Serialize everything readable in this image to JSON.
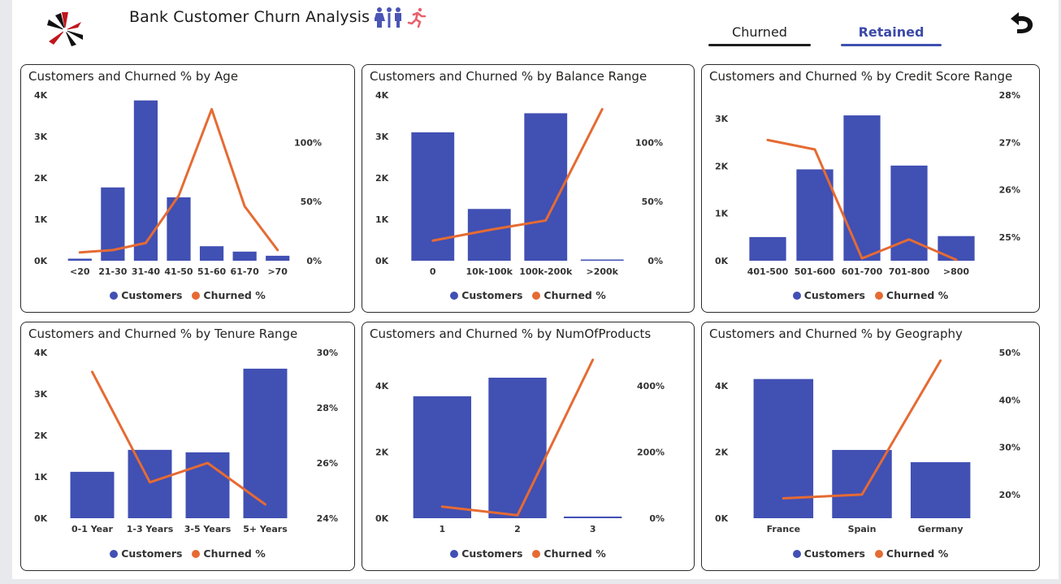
{
  "header": {
    "title": "Bank Customer Churn Analysis",
    "tabs": [
      {
        "label": "Churned",
        "active": false
      },
      {
        "label": "Retained",
        "active": true
      }
    ]
  },
  "legend": {
    "customers": "Customers",
    "churned": "Churned %"
  },
  "colors": {
    "bar": "#4150b3",
    "line": "#e56b33",
    "accent": "#3f4fb0"
  },
  "icons": [
    "logo-hands-icon",
    "people-icon",
    "running-person-icon",
    "back-arrow-icon"
  ],
  "chart_data": [
    {
      "type": "bar",
      "title": "Customers and Churned % by Age",
      "categories": [
        "<20",
        "21-30",
        "31-40",
        "41-50",
        "51-60",
        "61-70",
        ">70"
      ],
      "series": [
        {
          "name": "Customers",
          "type": "bar",
          "values": [
            50,
            1770,
            3870,
            1530,
            350,
            220,
            120
          ]
        },
        {
          "name": "Churned %",
          "type": "line",
          "values": [
            7,
            9,
            15,
            55,
            128,
            46,
            9
          ]
        }
      ],
      "y_left": {
        "ticks": [
          "0K",
          "1K",
          "2K",
          "3K",
          "4K"
        ],
        "range": [
          0,
          4000
        ]
      },
      "y_right": {
        "ticks": [
          "0%",
          "50%",
          "100%"
        ],
        "range": [
          0,
          140
        ]
      }
    },
    {
      "type": "bar",
      "title": "Customers and Churned % by Balance Range",
      "categories": [
        "0",
        "10k-100k",
        "100k-200k",
        ">200k"
      ],
      "series": [
        {
          "name": "Customers",
          "type": "bar",
          "values": [
            3100,
            1250,
            3560,
            10
          ]
        },
        {
          "name": "Churned %",
          "type": "line",
          "values": [
            17,
            26,
            34,
            128
          ]
        }
      ],
      "y_left": {
        "ticks": [
          "0K",
          "1K",
          "2K",
          "3K",
          "4K"
        ],
        "range": [
          0,
          4000
        ]
      },
      "y_right": {
        "ticks": [
          "0%",
          "50%",
          "100%"
        ],
        "range": [
          0,
          140
        ]
      }
    },
    {
      "type": "bar",
      "title": "Customers and Churned % by Credit Score Range",
      "categories": [
        "401-500",
        "501-600",
        "601-700",
        "701-800",
        ">800"
      ],
      "series": [
        {
          "name": "Customers",
          "type": "bar",
          "values": [
            500,
            1930,
            3070,
            2010,
            520
          ]
        },
        {
          "name": "Churned %",
          "type": "line",
          "values": [
            27.05,
            26.85,
            24.55,
            24.95,
            24.52
          ]
        }
      ],
      "y_left": {
        "ticks": [
          "0K",
          "1K",
          "2K",
          "3K"
        ],
        "range": [
          0,
          3500
        ]
      },
      "y_right": {
        "ticks": [
          "25%",
          "26%",
          "27%",
          "28%"
        ],
        "range": [
          24.5,
          28
        ]
      }
    },
    {
      "type": "bar",
      "title": "Customers and Churned % by Tenure Range",
      "categories": [
        "0-1 Year",
        "1-3 Years",
        "3-5 Years",
        "5+ Years"
      ],
      "series": [
        {
          "name": "Customers",
          "type": "bar",
          "values": [
            1120,
            1650,
            1590,
            3610
          ]
        },
        {
          "name": "Churned %",
          "type": "line",
          "values": [
            29.3,
            25.3,
            26.0,
            24.5
          ]
        }
      ],
      "y_left": {
        "ticks": [
          "0K",
          "1K",
          "2K",
          "3K",
          "4K"
        ],
        "range": [
          0,
          4000
        ]
      },
      "y_right": {
        "ticks": [
          "24%",
          "26%",
          "28%",
          "30%"
        ],
        "range": [
          24,
          30
        ]
      }
    },
    {
      "type": "bar",
      "title": "Customers and Churned % by NumOfProducts",
      "categories": [
        "1",
        "2",
        "3"
      ],
      "series": [
        {
          "name": "Customers",
          "type": "bar",
          "values": [
            3680,
            4240,
            50
          ]
        },
        {
          "name": "Churned %",
          "type": "line",
          "values": [
            35,
            9,
            478
          ]
        }
      ],
      "y_left": {
        "ticks": [
          "0K",
          "2K",
          "4K"
        ],
        "range": [
          0,
          5000
        ]
      },
      "y_right": {
        "ticks": [
          "0%",
          "200%",
          "400%"
        ],
        "range": [
          0,
          500
        ]
      }
    },
    {
      "type": "bar",
      "title": "Customers and Churned % by Geography",
      "categories": [
        "France",
        "Spain",
        "Germany"
      ],
      "series": [
        {
          "name": "Customers",
          "type": "bar",
          "values": [
            4200,
            2060,
            1690
          ]
        },
        {
          "name": "Churned %",
          "type": "line",
          "values": [
            19.2,
            20.0,
            48.3
          ]
        }
      ],
      "y_left": {
        "ticks": [
          "0K",
          "2K",
          "4K"
        ],
        "range": [
          0,
          5000
        ]
      },
      "y_right": {
        "ticks": [
          "20%",
          "30%",
          "40%",
          "50%"
        ],
        "range": [
          15,
          50
        ]
      }
    }
  ]
}
